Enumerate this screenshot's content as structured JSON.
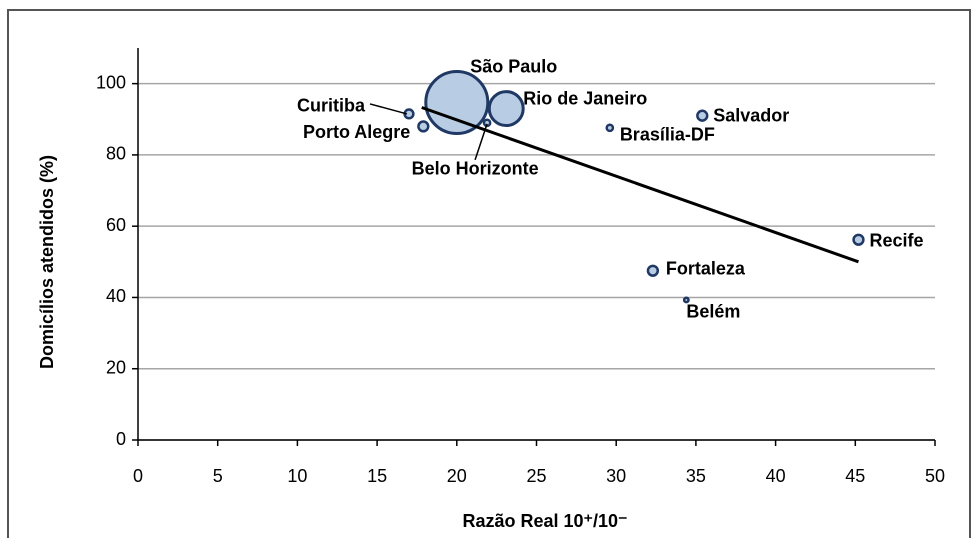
{
  "chart_data": {
    "type": "bubble",
    "xlabel": "Razão Real 10⁺/10⁻",
    "ylabel": "Domicílios atendidos (%)",
    "categories": [
      "São Paulo",
      "Rio de Janeiro",
      "Curitiba",
      "Porto Alegre",
      "Belo Horizonte",
      "Brasília-DF",
      "Salvador",
      "Recife",
      "Fortaleza",
      "Belém"
    ],
    "series": [
      {
        "x": [
          20.0,
          23.1,
          17.0,
          17.9,
          21.9,
          29.6,
          35.4,
          45.2,
          32.3,
          34.4
        ],
        "values": [
          94.7,
          93.0,
          91.5,
          88.0,
          89.0,
          87.6,
          91.0,
          56.2,
          47.5,
          39.3
        ],
        "sizes": [
          100,
          30,
          2,
          2.5,
          1,
          1,
          2.5,
          2.5,
          2.5,
          0.5
        ],
        "color": "#b8cce4",
        "edgecolor": "#1f3864"
      }
    ],
    "trendline": {
      "x": [
        17.8,
        45.2
      ],
      "y": [
        93.3,
        50.0
      ],
      "color": "#000000"
    },
    "xlim": [
      0,
      50
    ],
    "xticks": [
      0,
      5,
      10,
      15,
      20,
      25,
      30,
      35,
      40,
      45,
      50
    ],
    "ylim": [
      0,
      110
    ],
    "yticks": [
      0,
      20,
      40,
      60,
      80,
      100
    ],
    "grid": true
  }
}
